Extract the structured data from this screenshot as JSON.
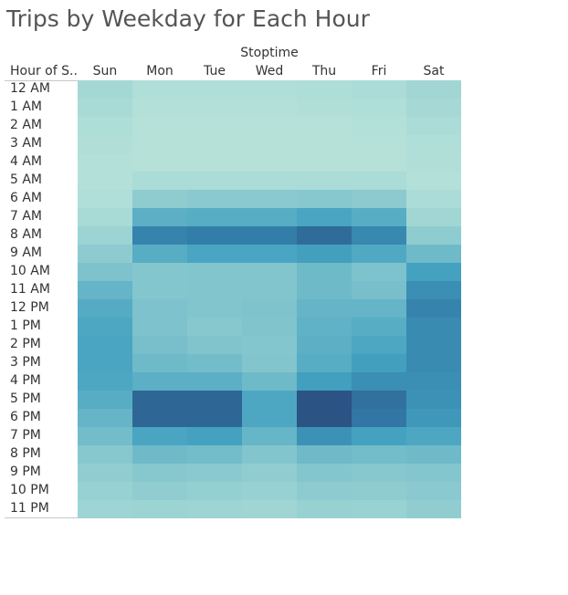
{
  "title": "Trips by Weekday for Each Hour",
  "chart_data": {
    "type": "heatmap",
    "title": "Trips by Weekday for Each Hour",
    "column_group_label": "Stoptime",
    "row_header": "Hour of S..",
    "columns": [
      "Sun",
      "Mon",
      "Tue",
      "Wed",
      "Thu",
      "Fri",
      "Sat"
    ],
    "rows": [
      "12 AM",
      "1 AM",
      "2 AM",
      "3 AM",
      "4 AM",
      "5 AM",
      "6 AM",
      "7 AM",
      "8 AM",
      "9 AM",
      "10 AM",
      "11 AM",
      "12 PM",
      "1 PM",
      "2 PM",
      "3 PM",
      "4 PM",
      "5 PM",
      "6 PM",
      "7 PM",
      "8 PM",
      "9 PM",
      "10 PM",
      "11 PM"
    ],
    "values": [
      [
        0.12,
        0.05,
        0.05,
        0.05,
        0.06,
        0.08,
        0.14
      ],
      [
        0.09,
        0.03,
        0.03,
        0.03,
        0.04,
        0.05,
        0.11
      ],
      [
        0.06,
        0.02,
        0.02,
        0.02,
        0.02,
        0.03,
        0.08
      ],
      [
        0.04,
        0.02,
        0.02,
        0.02,
        0.02,
        0.02,
        0.05
      ],
      [
        0.03,
        0.02,
        0.02,
        0.02,
        0.02,
        0.02,
        0.04
      ],
      [
        0.03,
        0.08,
        0.08,
        0.08,
        0.08,
        0.08,
        0.03
      ],
      [
        0.05,
        0.25,
        0.28,
        0.28,
        0.3,
        0.27,
        0.08
      ],
      [
        0.1,
        0.5,
        0.52,
        0.52,
        0.58,
        0.52,
        0.14
      ],
      [
        0.17,
        0.78,
        0.82,
        0.82,
        0.9,
        0.76,
        0.25
      ],
      [
        0.26,
        0.52,
        0.58,
        0.58,
        0.62,
        0.55,
        0.42
      ],
      [
        0.36,
        0.32,
        0.33,
        0.33,
        0.42,
        0.36,
        0.6
      ],
      [
        0.46,
        0.32,
        0.33,
        0.33,
        0.42,
        0.38,
        0.72
      ],
      [
        0.53,
        0.36,
        0.33,
        0.35,
        0.46,
        0.46,
        0.78
      ],
      [
        0.56,
        0.36,
        0.3,
        0.34,
        0.48,
        0.52,
        0.74
      ],
      [
        0.58,
        0.38,
        0.34,
        0.32,
        0.5,
        0.56,
        0.74
      ],
      [
        0.58,
        0.42,
        0.4,
        0.33,
        0.52,
        0.62,
        0.74
      ],
      [
        0.56,
        0.5,
        0.5,
        0.42,
        0.62,
        0.72,
        0.72
      ],
      [
        0.52,
        0.92,
        0.92,
        0.56,
        1.0,
        0.88,
        0.7
      ],
      [
        0.46,
        0.92,
        0.92,
        0.56,
        1.0,
        0.86,
        0.66
      ],
      [
        0.4,
        0.58,
        0.6,
        0.45,
        0.7,
        0.6,
        0.56
      ],
      [
        0.3,
        0.42,
        0.4,
        0.33,
        0.42,
        0.4,
        0.42
      ],
      [
        0.24,
        0.3,
        0.28,
        0.24,
        0.32,
        0.3,
        0.32
      ],
      [
        0.2,
        0.24,
        0.22,
        0.2,
        0.26,
        0.25,
        0.28
      ],
      [
        0.16,
        0.17,
        0.16,
        0.15,
        0.2,
        0.19,
        0.24
      ]
    ],
    "color_scale": [
      "#b8e3da",
      "#2b5383"
    ]
  }
}
